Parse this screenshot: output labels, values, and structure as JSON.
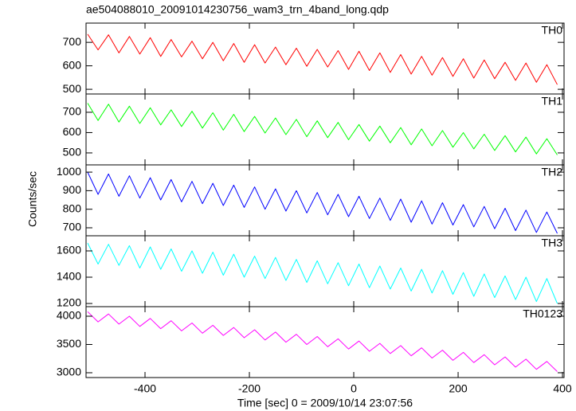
{
  "chart_data": [
    {
      "type": "line",
      "title": "ae504088010_20091014230756_wam3_trn_4band_long.qdp",
      "label": "TH0",
      "color": "#ff0000",
      "x": [
        -510,
        -490,
        -470,
        -450,
        -430,
        -410,
        -390,
        -370,
        -350,
        -330,
        -310,
        -290,
        -270,
        -250,
        -230,
        -210,
        -190,
        -170,
        -150,
        -130,
        -110,
        -90,
        -70,
        -50,
        -30,
        -10,
        10,
        30,
        50,
        70,
        90,
        110,
        130,
        150,
        170,
        190,
        210,
        230,
        250,
        270,
        290,
        310,
        330,
        350,
        370,
        390
      ],
      "values": [
        735,
        668,
        732,
        655,
        725,
        650,
        720,
        640,
        712,
        638,
        705,
        630,
        700,
        622,
        695,
        615,
        690,
        612,
        680,
        605,
        675,
        598,
        670,
        595,
        665,
        585,
        662,
        580,
        655,
        572,
        648,
        565,
        640,
        560,
        635,
        555,
        630,
        548,
        625,
        545,
        615,
        538,
        612,
        530,
        605,
        520
      ],
      "ylim": [
        480,
        782
      ],
      "yticks": [
        500,
        600,
        700
      ]
    },
    {
      "type": "line",
      "label": "TH1",
      "color": "#00ff00",
      "x": [
        -510,
        -490,
        -470,
        -450,
        -430,
        -410,
        -390,
        -370,
        -350,
        -330,
        -310,
        -290,
        -270,
        -250,
        -230,
        -210,
        -190,
        -170,
        -150,
        -130,
        -110,
        -90,
        -70,
        -50,
        -30,
        -10,
        10,
        30,
        50,
        70,
        90,
        110,
        130,
        150,
        170,
        190,
        210,
        230,
        250,
        270,
        290,
        310,
        330,
        350,
        370,
        390
      ],
      "values": [
        745,
        660,
        740,
        652,
        730,
        645,
        722,
        638,
        712,
        630,
        705,
        622,
        698,
        612,
        690,
        605,
        680,
        598,
        672,
        590,
        665,
        580,
        658,
        575,
        650,
        565,
        640,
        558,
        632,
        550,
        625,
        540,
        618,
        535,
        610,
        528,
        600,
        520,
        592,
        512,
        585,
        505,
        578,
        495,
        570,
        490
      ],
      "ylim": [
        441,
        790
      ],
      "yticks": [
        500,
        600,
        700
      ]
    },
    {
      "type": "line",
      "label": "TH2",
      "color": "#0000ff",
      "ylabel": "Counts/sec",
      "x": [
        -510,
        -490,
        -470,
        -450,
        -430,
        -410,
        -390,
        -370,
        -350,
        -330,
        -310,
        -290,
        -270,
        -250,
        -230,
        -210,
        -190,
        -170,
        -150,
        -130,
        -110,
        -90,
        -70,
        -50,
        -30,
        -10,
        10,
        30,
        50,
        70,
        90,
        110,
        130,
        150,
        170,
        190,
        210,
        230,
        250,
        270,
        290,
        310,
        330,
        350,
        370,
        390
      ],
      "values": [
        1000,
        880,
        990,
        870,
        980,
        860,
        970,
        850,
        960,
        840,
        950,
        830,
        940,
        820,
        930,
        810,
        920,
        800,
        910,
        790,
        900,
        780,
        890,
        770,
        880,
        760,
        870,
        750,
        860,
        740,
        855,
        730,
        845,
        720,
        835,
        715,
        825,
        705,
        815,
        695,
        805,
        685,
        795,
        675,
        785,
        670
      ],
      "ylim": [
        657,
        1039
      ],
      "yticks": [
        700,
        800,
        900,
        1000
      ]
    },
    {
      "type": "line",
      "label": "TH3",
      "color": "#00ffff",
      "x": [
        -510,
        -490,
        -470,
        -450,
        -430,
        -410,
        -390,
        -370,
        -350,
        -330,
        -310,
        -290,
        -270,
        -250,
        -230,
        -210,
        -190,
        -170,
        -150,
        -130,
        -110,
        -90,
        -70,
        -50,
        -30,
        -10,
        10,
        30,
        50,
        70,
        90,
        110,
        130,
        150,
        170,
        190,
        210,
        230,
        250,
        270,
        290,
        310,
        330,
        350,
        370,
        390
      ],
      "values": [
        1660,
        1500,
        1650,
        1490,
        1640,
        1470,
        1630,
        1460,
        1615,
        1445,
        1600,
        1430,
        1590,
        1415,
        1575,
        1400,
        1560,
        1390,
        1550,
        1375,
        1535,
        1360,
        1525,
        1350,
        1510,
        1335,
        1500,
        1320,
        1485,
        1310,
        1470,
        1295,
        1460,
        1280,
        1450,
        1270,
        1435,
        1255,
        1425,
        1245,
        1410,
        1230,
        1400,
        1215,
        1390,
        1200
      ],
      "ylim": [
        1176,
        1715
      ],
      "yticks": [
        1200,
        1400,
        1600
      ]
    },
    {
      "type": "line",
      "label": "TH0123",
      "color": "#ff00ff",
      "xlabel": "Time [sec] 0 = 2009/10/14 23:07:56",
      "x": [
        -510,
        -490,
        -470,
        -450,
        -430,
        -410,
        -390,
        -370,
        -350,
        -330,
        -310,
        -290,
        -270,
        -250,
        -230,
        -210,
        -190,
        -170,
        -150,
        -130,
        -110,
        -90,
        -70,
        -50,
        -30,
        -10,
        10,
        30,
        50,
        70,
        90,
        110,
        130,
        150,
        170,
        190,
        210,
        230,
        250,
        270,
        290,
        310,
        330,
        350,
        370,
        390
      ],
      "values": [
        4080,
        3900,
        4040,
        3860,
        4000,
        3820,
        3960,
        3780,
        3920,
        3740,
        3880,
        3700,
        3840,
        3660,
        3800,
        3620,
        3760,
        3580,
        3720,
        3540,
        3680,
        3500,
        3640,
        3460,
        3600,
        3420,
        3560,
        3380,
        3520,
        3340,
        3480,
        3300,
        3440,
        3260,
        3400,
        3220,
        3360,
        3180,
        3320,
        3140,
        3280,
        3100,
        3240,
        3060,
        3200,
        3020
      ],
      "ylim": [
        2915,
        4169
      ],
      "yticks": [
        3000,
        3500,
        4000
      ],
      "xlim": [
        -513,
        403
      ],
      "xticks": [
        -400,
        -200,
        0,
        200,
        400
      ]
    }
  ]
}
